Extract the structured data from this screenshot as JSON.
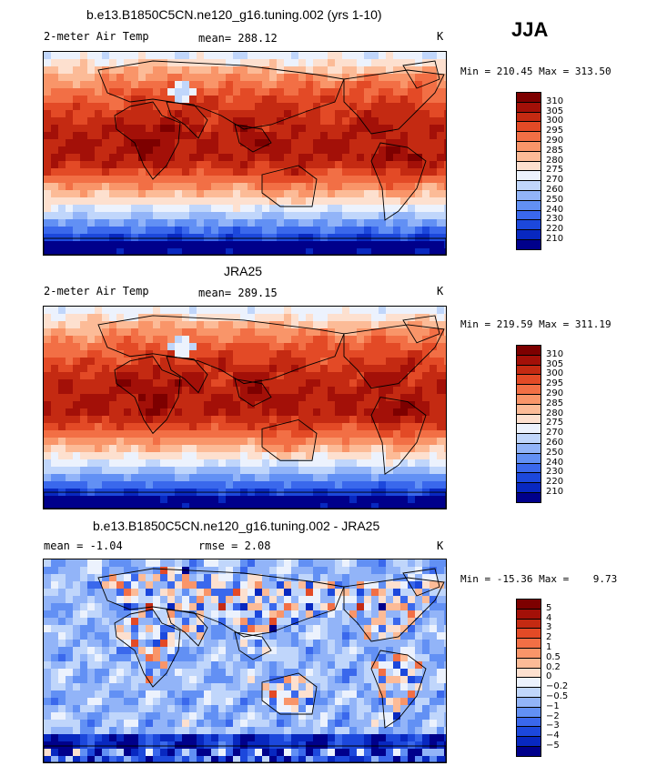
{
  "season": "JJA",
  "colors": {
    "abs": [
      "#00008b",
      "#0828c0",
      "#1c48dc",
      "#3a68ec",
      "#6290f4",
      "#92b4f8",
      "#c0d6fb",
      "#ecf2fd",
      "#fde0cf",
      "#fcbb97",
      "#f99569",
      "#f26f45",
      "#e34a26",
      "#c42a12",
      "#a31008",
      "#7d0000"
    ],
    "diff": [
      "#00008b",
      "#0828c0",
      "#1c48dc",
      "#3a68ec",
      "#6290f4",
      "#92b4f8",
      "#c0d6fb",
      "#ecf2fd",
      "#fde0cf",
      "#fcbb97",
      "#f99569",
      "#f26f45",
      "#e34a26",
      "#c42a12",
      "#a31008",
      "#7d0000"
    ]
  },
  "panels": [
    {
      "title": "b.e13.B1850C5CN.ne120_g16.tuning.002 (yrs 1-10)",
      "left_label": "2-meter Air Temp",
      "mid_label": "mean=  288.12",
      "right_label": "K",
      "minmax": "Min = 210.45 Max = 313.50"
    },
    {
      "title": "JRA25",
      "left_label": "2-meter Air Temp",
      "mid_label": "mean=  289.15",
      "right_label": "K",
      "minmax": "Min = 219.59 Max = 311.19"
    },
    {
      "title": "b.e13.B1850C5CN.ne120_g16.tuning.002 - JRA25",
      "left_label": "mean =   -1.04",
      "mid_label": "rmse =    2.08",
      "right_label": "K",
      "minmax": "Min = -15.36 Max =    9.73"
    }
  ],
  "chart_data": [
    {
      "type": "heatmap",
      "title": "b.e13.B1850C5CN.ne120_g16.tuning.002 (yrs 1-10)",
      "variable": "2-meter Air Temp",
      "units": "K",
      "mean": 288.12,
      "min": 210.45,
      "max": 313.5,
      "colorbar_levels": [
        "310",
        "305",
        "300",
        "295",
        "290",
        "285",
        "280",
        "275",
        "270",
        "260",
        "250",
        "240",
        "230",
        "220",
        "210"
      ]
    },
    {
      "type": "heatmap",
      "title": "JRA25",
      "variable": "2-meter Air Temp",
      "units": "K",
      "mean": 289.15,
      "min": 219.59,
      "max": 311.19,
      "colorbar_levels": [
        "310",
        "305",
        "300",
        "295",
        "290",
        "285",
        "280",
        "275",
        "270",
        "260",
        "250",
        "240",
        "230",
        "220",
        "210"
      ]
    },
    {
      "type": "heatmap",
      "title": "b.e13.B1850C5CN.ne120_g16.tuning.002 - JRA25",
      "units": "K",
      "mean": -1.04,
      "rmse": 2.08,
      "min": -15.36,
      "max": 9.73,
      "colorbar_levels": [
        "5",
        "4",
        "3",
        "2",
        "1",
        "0.5",
        "0.2",
        "0",
        "−0.2",
        "−0.5",
        "−1",
        "−2",
        "−3",
        "−4",
        "−5"
      ]
    }
  ]
}
